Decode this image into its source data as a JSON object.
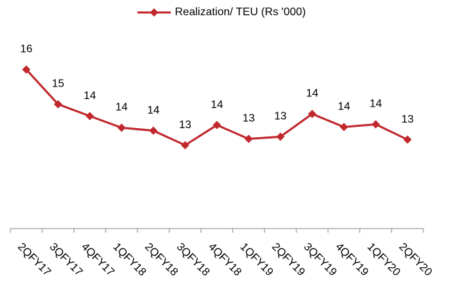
{
  "chart_data": {
    "type": "line",
    "categories": [
      "2QFY17",
      "3QFY17",
      "4QFY17",
      "1QFY18",
      "2QFY18",
      "3QFY18",
      "4QFY18",
      "1QFY19",
      "2QFY19",
      "3QFY19",
      "4QFY19",
      "1QFY20",
      "2QFY20"
    ],
    "series": [
      {
        "name": "Realization/ TEU (Rs '000)",
        "color": "#c0282d",
        "values": [
          16.16,
          14.73,
          14.24,
          13.76,
          13.64,
          13.04,
          13.87,
          13.3,
          13.39,
          14.33,
          13.79,
          13.9,
          13.27
        ],
        "value_labels": [
          "16",
          "15",
          "14",
          "14",
          "14",
          "13",
          "14",
          "13",
          "13",
          "14",
          "14",
          "14",
          "13"
        ]
      }
    ],
    "ylim": [
      9.6,
      18
    ],
    "legend": "top"
  }
}
